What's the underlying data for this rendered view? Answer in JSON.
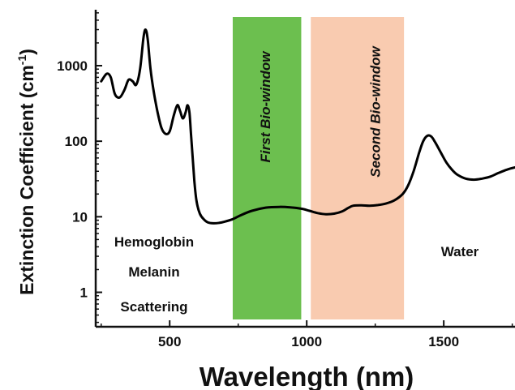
{
  "chart_data": {
    "type": "line",
    "xlabel": "Wavelength (nm)",
    "ylabel_main": "Extinction Coefficient (cm",
    "ylabel_sup": "-1",
    "ylabel_close": ")",
    "xlim": [
      230,
      1760
    ],
    "ylim": [
      0.35,
      5500
    ],
    "yscale": "log",
    "x_ticks": [
      500,
      1000,
      1500
    ],
    "x_tick_labels": [
      "500",
      "1000",
      "1500"
    ],
    "y_ticks": [
      1,
      10,
      100,
      1000
    ],
    "y_tick_labels": [
      "1",
      "10",
      "100",
      "1000"
    ],
    "grid": false,
    "bands": [
      {
        "label": "First Bio-window",
        "x_start": 730,
        "x_end": 980,
        "color": "#6cbf4f"
      },
      {
        "label": "Second Bio-window",
        "x_start": 1015,
        "x_end": 1355,
        "color": "#f9cbb0"
      }
    ],
    "annotations": [
      "Hemoglobin",
      "Melanin",
      "Scattering",
      "Water"
    ],
    "series": [
      {
        "color": "#000000",
        "x": [
          250,
          270,
          285,
          300,
          318,
          335,
          350,
          365,
          378,
          392,
          404,
          412,
          420,
          430,
          442,
          455,
          470,
          485,
          500,
          515,
          528,
          538,
          548,
          558,
          565,
          572,
          578,
          584,
          590,
          598,
          610,
          625,
          640,
          660,
          680,
          700,
          730,
          760,
          800,
          850,
          900,
          940,
          980,
          1010,
          1040,
          1070,
          1100,
          1130,
          1150,
          1170,
          1200,
          1230,
          1260,
          1290,
          1320,
          1350,
          1370,
          1390,
          1410,
          1425,
          1440,
          1455,
          1470,
          1490,
          1510,
          1530,
          1550,
          1580,
          1610,
          1640,
          1670,
          1700,
          1730,
          1760
        ],
        "y": [
          620,
          780,
          700,
          420,
          380,
          480,
          650,
          620,
          560,
          900,
          2300,
          3000,
          2200,
          900,
          450,
          250,
          150,
          125,
          135,
          220,
          300,
          250,
          200,
          240,
          300,
          240,
          120,
          60,
          30,
          16,
          11,
          9.2,
          8.4,
          8.2,
          8.3,
          8.6,
          9.3,
          10.5,
          12,
          13.2,
          13.5,
          13.3,
          12.8,
          12,
          11.2,
          10.8,
          11,
          11.8,
          13,
          14,
          14.2,
          14,
          14.3,
          15,
          16.5,
          20,
          26,
          40,
          70,
          100,
          118,
          115,
          95,
          70,
          52,
          42,
          36,
          32,
          31,
          32,
          34,
          38,
          42,
          45
        ]
      }
    ]
  }
}
